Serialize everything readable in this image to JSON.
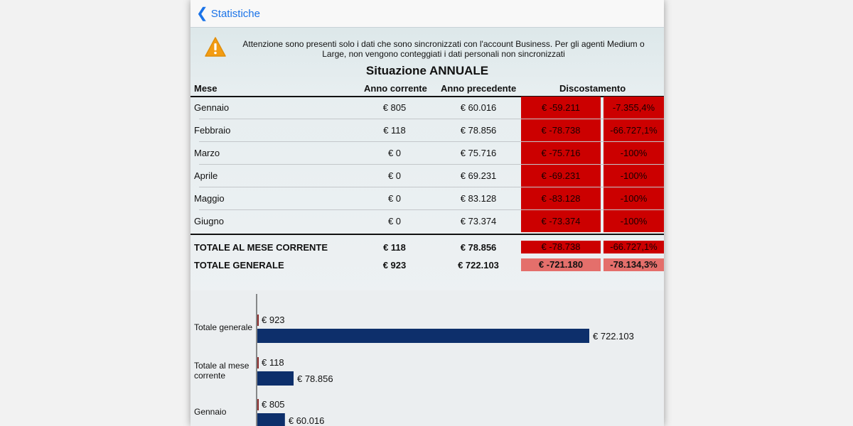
{
  "nav": {
    "back_label": "Statistiche"
  },
  "warning": {
    "icon": "warning-icon",
    "text": "Attenzione sono presenti solo i dati che sono sincronizzati con l'account Business. Per gli agenti Medium o Large, non vengono conteggiati i dati personali non sincronizzati"
  },
  "title": "Situazione ANNUALE",
  "table": {
    "headers": {
      "month": "Mese",
      "current": "Anno corrente",
      "previous": "Anno precedente",
      "deviation": "Discostamento"
    },
    "rows": [
      {
        "month": "Gennaio",
        "current": "€ 805",
        "previous": "€ 60.016",
        "dev_value": "€ -59.211",
        "dev_pct": "-7.355,4%"
      },
      {
        "month": "Febbraio",
        "current": "€ 118",
        "previous": "€ 78.856",
        "dev_value": "€ -78.738",
        "dev_pct": "-66.727,1%"
      },
      {
        "month": "Marzo",
        "current": "€ 0",
        "previous": "€ 75.716",
        "dev_value": "€ -75.716",
        "dev_pct": "-100%"
      },
      {
        "month": "Aprile",
        "current": "€ 0",
        "previous": "€ 69.231",
        "dev_value": "€ -69.231",
        "dev_pct": "-100%"
      },
      {
        "month": "Maggio",
        "current": "€ 0",
        "previous": "€ 83.128",
        "dev_value": "€ -83.128",
        "dev_pct": "-100%"
      },
      {
        "month": "Giugno",
        "current": "€ 0",
        "previous": "€ 73.374",
        "dev_value": "€ -73.374",
        "dev_pct": "-100%"
      }
    ],
    "totals": [
      {
        "label": "TOTALE AL MESE CORRENTE",
        "current": "€ 118",
        "previous": "€ 78.856",
        "dev_value": "€ -78.738",
        "dev_pct": "-66.727,1%"
      },
      {
        "label": "TOTALE GENERALE",
        "current": "€ 923",
        "previous": "€ 722.103",
        "dev_value": "€ -721.180",
        "dev_pct": "-78.134,3%"
      }
    ]
  },
  "colors": {
    "negative": "#cc0000",
    "negative_light": "#e46f6b",
    "current_bar": "#8b2a2a",
    "previous_bar": "#0d2f6b",
    "link": "#1a73e8"
  },
  "chart_data": {
    "type": "bar",
    "orientation": "horizontal",
    "categories": [
      "Totale generale",
      "Totale al mese corrente",
      "Gennaio"
    ],
    "series": [
      {
        "values": [
          923,
          118,
          805
        ],
        "labels": [
          "€ 923",
          "€ 118",
          "€ 805"
        ]
      },
      {
        "values": [
          722103,
          78856,
          60016
        ],
        "labels": [
          "€ 722.103",
          "€ 78.856",
          "€ 60.016"
        ]
      }
    ]
  }
}
